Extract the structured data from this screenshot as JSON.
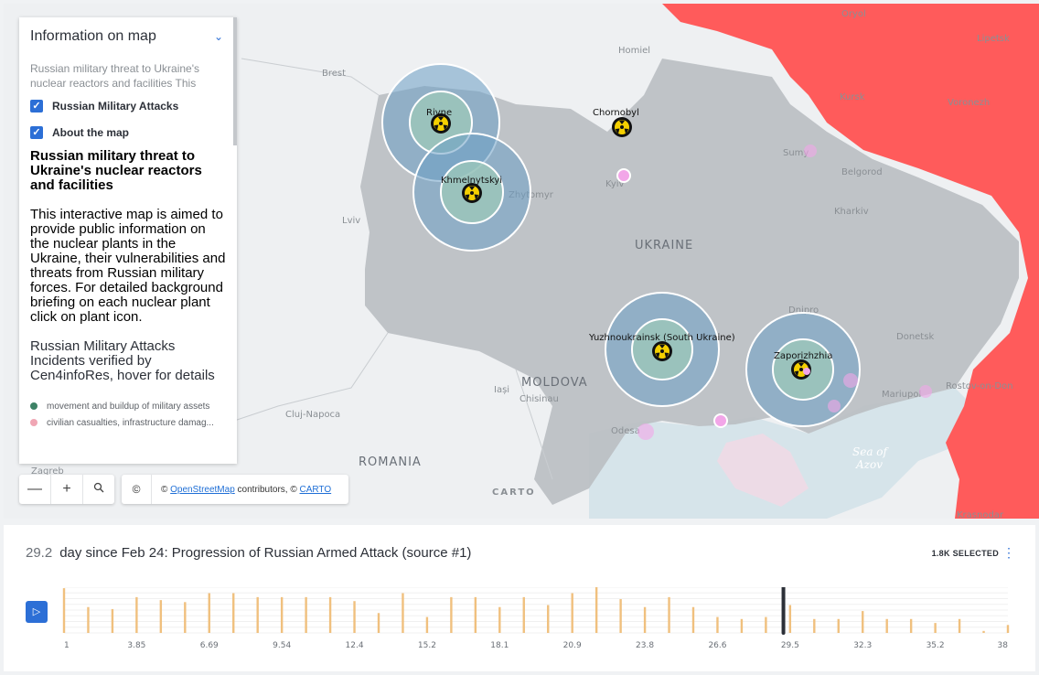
{
  "map": {
    "cities": [
      "Oryol",
      "Lipetsk",
      "Kursk",
      "Voronezh",
      "Homiel",
      "Brest",
      "Sumy",
      "Belgorod",
      "Kyiv",
      "Zhytomyr",
      "Kharkiv",
      "Lviv",
      "Dnipro",
      "Donetsk",
      "Mariupol",
      "Rostov-on-Don",
      "Odesa",
      "Iași",
      "Chisinau",
      "Cluj-Napoca",
      "Zagreb",
      "Krasnodar",
      "Zaporizhzhia"
    ],
    "countries": [
      "UKRAINE",
      "MOLDOVA",
      "ROMANIA"
    ],
    "sea": [
      "Sea of",
      "Azov"
    ],
    "plants": [
      "Rivne",
      "Khmelnytskyi",
      "Chornobyl",
      "Yuzhnoukrainsk (South Ukraine)",
      "Zaporizhzhia"
    ],
    "carto": "CARTO",
    "colors": {
      "occupied": "#ff5b5b",
      "ukraine": "#bcc0c4",
      "ring": "#6c9ec4",
      "inner": "#9ec8b8",
      "attack": "#f2a6e8"
    }
  },
  "info": {
    "header": "Information on map",
    "subtitle": "Russian military threat to Ukraine's nuclear reactors and facilities This",
    "checkbox1": "Russian Military Attacks",
    "checkbox2": "About the map",
    "title": "Russian military threat to Ukraine's nuclear reactors and facilities",
    "description": "This interactive map is aimed to provide public information on the nuclear plants in the Ukraine, their vulnerabilities and threats from Russian military forces. For detailed background briefing on each nuclear plant click on plant icon.",
    "incidents": "Russian Military Attacks Incidents verified by Cen4infoRes, hover for details",
    "legend": [
      {
        "label": "movement and buildup of military assets",
        "color": "#3d8266"
      },
      {
        "label": "civilian casualties, infrastructure damag...",
        "color": "#f0a6b4"
      }
    ]
  },
  "controls": {
    "zoom_out": "—",
    "zoom_in": "+",
    "search_icon": "search-icon",
    "copyright": "©",
    "attr_prefix": "© ",
    "attr_osm": "OpenStreetMap",
    "attr_mid": " contributors, © ",
    "attr_carto": "CARTO"
  },
  "timeline": {
    "value": "29.2",
    "label": "day since Feb 24: Progression of Russian Armed Attack (source #1)",
    "selected": "1.8K SELECTED",
    "play_icon": "play-icon",
    "bar_color": "#f0c07e",
    "current_day": 29.2
  },
  "chart_data": {
    "type": "bar",
    "xlim": [
      1,
      38
    ],
    "ticks": [
      "1",
      "3.85",
      "6.69",
      "9.54",
      "12.4",
      "15.2",
      "18.1",
      "20.9",
      "23.8",
      "26.6",
      "29.5",
      "32.3",
      "35.2",
      "38"
    ],
    "values": [
      45,
      26,
      24,
      36,
      33,
      31,
      40,
      40,
      36,
      36,
      36,
      36,
      32,
      20,
      40,
      16,
      36,
      36,
      26,
      36,
      28,
      40,
      46,
      34,
      26,
      36,
      26,
      16,
      14,
      16,
      28,
      14,
      14,
      22,
      14,
      14,
      10,
      14,
      2,
      8
    ]
  }
}
